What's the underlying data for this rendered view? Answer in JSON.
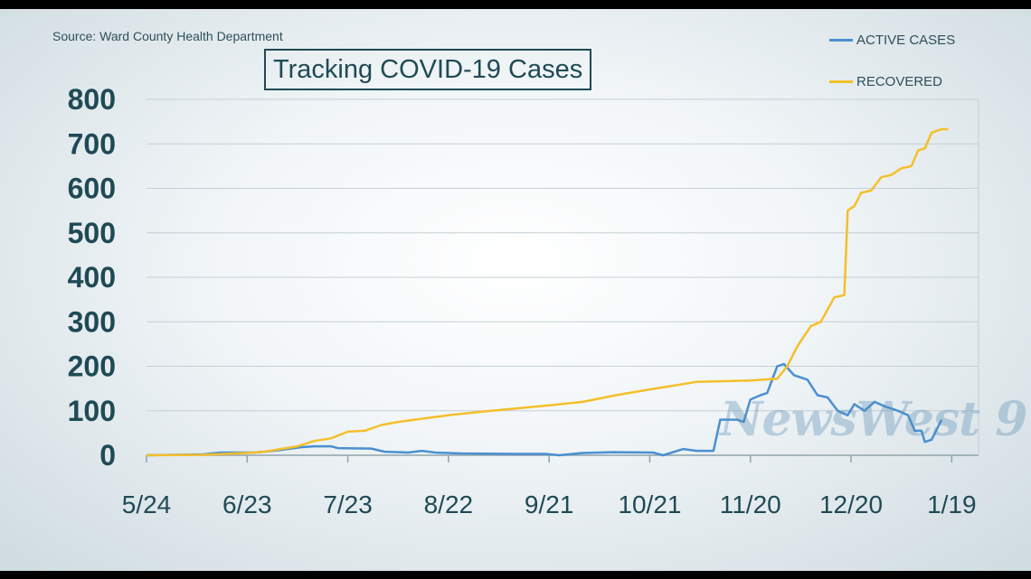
{
  "source": "Source: Ward County Health Department",
  "watermark": "NewsWest 9",
  "chart_data": {
    "type": "line",
    "title": "Tracking COVID-19 Cases",
    "xlabel": "",
    "ylabel": "",
    "ylim": [
      0,
      800
    ],
    "yticks": [
      0,
      100,
      200,
      300,
      400,
      500,
      600,
      700,
      800
    ],
    "xlim": [
      "2020-05-24",
      "2021-01-27"
    ],
    "xticks": [
      {
        "date": "2020-05-24",
        "label": "5/24"
      },
      {
        "date": "2020-06-23",
        "label": "6/23"
      },
      {
        "date": "2020-07-23",
        "label": "7/23"
      },
      {
        "date": "2020-08-22",
        "label": "8/22"
      },
      {
        "date": "2020-09-21",
        "label": "9/21"
      },
      {
        "date": "2020-10-21",
        "label": "10/21"
      },
      {
        "date": "2020-11-20",
        "label": "11/20"
      },
      {
        "date": "2020-12-20",
        "label": "12/20"
      },
      {
        "date": "2021-01-19",
        "label": "1/19"
      }
    ],
    "grid": true,
    "legend": "top-right",
    "series": [
      {
        "name": "ACTIVE CASES",
        "color": "#4a90d0",
        "points": [
          [
            "2020-05-24",
            0
          ],
          [
            "2020-06-10",
            2
          ],
          [
            "2020-06-15",
            6
          ],
          [
            "2020-06-25",
            6
          ],
          [
            "2020-06-28",
            8
          ],
          [
            "2020-07-03",
            12
          ],
          [
            "2020-07-09",
            18
          ],
          [
            "2020-07-13",
            20
          ],
          [
            "2020-07-18",
            20
          ],
          [
            "2020-07-20",
            16
          ],
          [
            "2020-07-30",
            15
          ],
          [
            "2020-08-03",
            8
          ],
          [
            "2020-08-10",
            6
          ],
          [
            "2020-08-14",
            10
          ],
          [
            "2020-08-18",
            6
          ],
          [
            "2020-08-26",
            4
          ],
          [
            "2020-09-10",
            3
          ],
          [
            "2020-09-20",
            3
          ],
          [
            "2020-09-24",
            0
          ],
          [
            "2020-10-01",
            5
          ],
          [
            "2020-10-10",
            7
          ],
          [
            "2020-10-22",
            6
          ],
          [
            "2020-10-25",
            0
          ],
          [
            "2020-10-31",
            14
          ],
          [
            "2020-11-04",
            10
          ],
          [
            "2020-11-09",
            10
          ],
          [
            "2020-11-11",
            80
          ],
          [
            "2020-11-16",
            80
          ],
          [
            "2020-11-18",
            75
          ],
          [
            "2020-11-20",
            125
          ],
          [
            "2020-11-23",
            135
          ],
          [
            "2020-11-25",
            140
          ],
          [
            "2020-11-28",
            200
          ],
          [
            "2020-11-30",
            205
          ],
          [
            "2020-12-03",
            180
          ],
          [
            "2020-12-07",
            170
          ],
          [
            "2020-12-10",
            135
          ],
          [
            "2020-12-13",
            130
          ],
          [
            "2020-12-16",
            100
          ],
          [
            "2020-12-19",
            90
          ],
          [
            "2020-12-21",
            115
          ],
          [
            "2020-12-24",
            100
          ],
          [
            "2020-12-27",
            120
          ],
          [
            "2020-12-30",
            110
          ],
          [
            "2021-01-03",
            100
          ],
          [
            "2021-01-06",
            90
          ],
          [
            "2021-01-08",
            55
          ],
          [
            "2021-01-10",
            55
          ],
          [
            "2021-01-11",
            30
          ],
          [
            "2021-01-13",
            35
          ],
          [
            "2021-01-16",
            80
          ]
        ]
      },
      {
        "name": "RECOVERED",
        "color": "#f5bf2a",
        "points": [
          [
            "2020-05-24",
            0
          ],
          [
            "2020-06-10",
            1
          ],
          [
            "2020-06-23",
            5
          ],
          [
            "2020-06-28",
            8
          ],
          [
            "2020-07-03",
            14
          ],
          [
            "2020-07-08",
            20
          ],
          [
            "2020-07-13",
            32
          ],
          [
            "2020-07-18",
            38
          ],
          [
            "2020-07-23",
            53
          ],
          [
            "2020-07-28",
            55
          ],
          [
            "2020-08-02",
            68
          ],
          [
            "2020-08-07",
            75
          ],
          [
            "2020-08-12",
            80
          ],
          [
            "2020-08-17",
            85
          ],
          [
            "2020-08-22",
            90
          ],
          [
            "2020-09-01",
            98
          ],
          [
            "2020-09-11",
            105
          ],
          [
            "2020-09-21",
            112
          ],
          [
            "2020-10-01",
            120
          ],
          [
            "2020-10-11",
            135
          ],
          [
            "2020-10-21",
            148
          ],
          [
            "2020-10-31",
            160
          ],
          [
            "2020-11-04",
            165
          ],
          [
            "2020-11-20",
            168
          ],
          [
            "2020-11-28",
            172
          ],
          [
            "2020-12-01",
            200
          ],
          [
            "2020-12-04",
            245
          ],
          [
            "2020-12-08",
            290
          ],
          [
            "2020-12-11",
            300
          ],
          [
            "2020-12-15",
            355
          ],
          [
            "2020-12-18",
            360
          ],
          [
            "2020-12-19",
            550
          ],
          [
            "2020-12-21",
            560
          ],
          [
            "2020-12-23",
            590
          ],
          [
            "2020-12-26",
            595
          ],
          [
            "2020-12-29",
            625
          ],
          [
            "2021-01-01",
            630
          ],
          [
            "2021-01-04",
            645
          ],
          [
            "2021-01-07",
            650
          ],
          [
            "2021-01-09",
            685
          ],
          [
            "2021-01-11",
            690
          ],
          [
            "2021-01-13",
            725
          ],
          [
            "2021-01-16",
            733
          ],
          [
            "2021-01-18",
            733
          ]
        ]
      }
    ]
  }
}
